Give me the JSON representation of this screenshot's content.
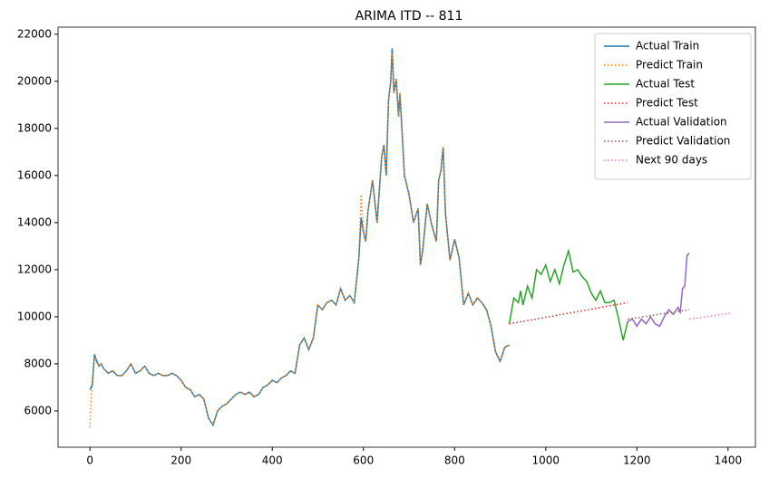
{
  "chart_data": {
    "type": "line",
    "title": "ARIMA ITD -- 811",
    "xlim": [
      -70,
      1460
    ],
    "ylim": [
      4460,
      22300
    ],
    "xticks": [
      0,
      200,
      400,
      600,
      800,
      1000,
      1200,
      1400
    ],
    "yticks": [
      6000,
      8000,
      10000,
      12000,
      14000,
      16000,
      18000,
      20000,
      22000
    ],
    "legend": "upper right",
    "series": [
      {
        "name": "Actual Train",
        "color": "#1f77b4",
        "style": "solid",
        "x": [
          0,
          5,
          10,
          15,
          20,
          25,
          30,
          40,
          50,
          60,
          70,
          80,
          90,
          100,
          110,
          120,
          130,
          140,
          150,
          160,
          170,
          180,
          190,
          200,
          210,
          220,
          230,
          240,
          250,
          260,
          270,
          280,
          290,
          300,
          310,
          320,
          330,
          340,
          350,
          360,
          370,
          380,
          390,
          400,
          410,
          420,
          430,
          440,
          450,
          460,
          470,
          480,
          490,
          500,
          510,
          520,
          530,
          540,
          550,
          560,
          570,
          580,
          590,
          595,
          600,
          605,
          610,
          620,
          630,
          640,
          645,
          650,
          655,
          660,
          663,
          667,
          672,
          677,
          680,
          690,
          700,
          710,
          720,
          725,
          730,
          740,
          750,
          760,
          765,
          770,
          775,
          780,
          790,
          800,
          810,
          820,
          830,
          840,
          850,
          860,
          870,
          880,
          890,
          900,
          910,
          920
        ],
        "values": [
          6900,
          7100,
          8400,
          8100,
          7900,
          8000,
          7800,
          7600,
          7700,
          7500,
          7500,
          7700,
          8000,
          7600,
          7700,
          7900,
          7600,
          7500,
          7600,
          7500,
          7500,
          7600,
          7500,
          7300,
          7000,
          6900,
          6600,
          6700,
          6500,
          5700,
          5400,
          6000,
          6200,
          6300,
          6500,
          6700,
          6800,
          6700,
          6800,
          6600,
          6700,
          7000,
          7100,
          7300,
          7200,
          7400,
          7500,
          7700,
          7600,
          8800,
          9100,
          8600,
          9100,
          10500,
          10300,
          10600,
          10700,
          10500,
          11200,
          10700,
          10900,
          10600,
          12500,
          14200,
          13600,
          13200,
          14500,
          15800,
          14000,
          16800,
          17300,
          16000,
          19200,
          20000,
          21400,
          19500,
          20100,
          18500,
          19500,
          16000,
          15200,
          14000,
          14600,
          12200,
          12800,
          14800,
          13900,
          13200,
          15800,
          16200,
          17200,
          14400,
          12400,
          13300,
          12500,
          10500,
          11000,
          10500,
          10800,
          10600,
          10300,
          9600,
          8500,
          8100,
          8700,
          8800
        ]
      },
      {
        "name": "Predict Train",
        "color": "#ff7f0e",
        "style": "dotted",
        "x": [
          0,
          3,
          5,
          10,
          15,
          20,
          25,
          30,
          40,
          50,
          60,
          70,
          80,
          90,
          100,
          110,
          120,
          130,
          140,
          150,
          160,
          170,
          180,
          190,
          200,
          210,
          220,
          230,
          240,
          250,
          260,
          270,
          280,
          290,
          300,
          310,
          320,
          330,
          340,
          350,
          360,
          370,
          380,
          390,
          400,
          410,
          420,
          430,
          440,
          450,
          460,
          470,
          480,
          490,
          500,
          510,
          520,
          530,
          540,
          550,
          560,
          570,
          580,
          590,
          595,
          600,
          605,
          610,
          620,
          630,
          640,
          645,
          650,
          655,
          660,
          663,
          667,
          672,
          677,
          680,
          690,
          700,
          710,
          720,
          725,
          730,
          740,
          750,
          760,
          765,
          770,
          775,
          780,
          790,
          800,
          810,
          820,
          830,
          840,
          850,
          860,
          870,
          880,
          890,
          900,
          910,
          920
        ],
        "values": [
          5300,
          6700,
          7000,
          8300,
          8200,
          7900,
          8000,
          7800,
          7600,
          7700,
          7500,
          7500,
          7700,
          8000,
          7600,
          7700,
          7900,
          7600,
          7500,
          7600,
          7500,
          7500,
          7600,
          7500,
          7300,
          7000,
          6900,
          6600,
          6700,
          6500,
          5700,
          5400,
          6000,
          6200,
          6300,
          6500,
          6700,
          6800,
          6700,
          6800,
          6600,
          6700,
          7000,
          7100,
          7300,
          7200,
          7400,
          7500,
          7700,
          7600,
          8800,
          9100,
          8600,
          9100,
          10500,
          10300,
          10600,
          10700,
          10500,
          11200,
          10700,
          10900,
          10600,
          12500,
          15200,
          13600,
          13200,
          14500,
          15800,
          14000,
          16800,
          17300,
          16000,
          19200,
          20000,
          21200,
          19500,
          20100,
          18500,
          19500,
          16000,
          15200,
          14000,
          14600,
          12200,
          12800,
          14800,
          13900,
          13200,
          15800,
          16200,
          17200,
          14400,
          12400,
          13300,
          12500,
          10500,
          11000,
          10500,
          10800,
          10600,
          10300,
          9600,
          8500,
          8100,
          8700,
          8800
        ]
      },
      {
        "name": "Actual Test",
        "color": "#2ca02c",
        "style": "solid",
        "x": [
          920,
          930,
          940,
          945,
          950,
          960,
          970,
          980,
          990,
          1000,
          1010,
          1020,
          1030,
          1040,
          1050,
          1060,
          1070,
          1080,
          1090,
          1100,
          1110,
          1120,
          1130,
          1140,
          1150,
          1160,
          1170,
          1180
        ],
        "values": [
          9700,
          10800,
          10600,
          11100,
          10500,
          11300,
          10800,
          12000,
          11800,
          12200,
          11500,
          12000,
          11400,
          12200,
          12800,
          11900,
          12000,
          11700,
          11500,
          11000,
          10700,
          11100,
          10600,
          10600,
          10700,
          9900,
          9000,
          9800
        ]
      },
      {
        "name": "Predict Test",
        "color": "#d62728",
        "style": "dotted",
        "x": [
          920,
          1050,
          1180
        ],
        "values": [
          9700,
          10150,
          10600
        ]
      },
      {
        "name": "Actual Validation",
        "color": "#9467bd",
        "style": "solid",
        "x": [
          1180,
          1190,
          1200,
          1210,
          1220,
          1230,
          1240,
          1250,
          1260,
          1270,
          1280,
          1290,
          1295,
          1300,
          1305,
          1310,
          1315
        ],
        "values": [
          9800,
          9900,
          9600,
          9900,
          9700,
          10000,
          9700,
          9600,
          10000,
          10300,
          10100,
          10400,
          10200,
          11200,
          11300,
          12600,
          12700
        ]
      },
      {
        "name": "Predict Validation",
        "color": "#8c564b",
        "style": "dotted",
        "x": [
          1180,
          1315
        ],
        "values": [
          9900,
          10300
        ]
      },
      {
        "name": "Next 90 days",
        "color": "#e377c2",
        "style": "dotted",
        "x": [
          1315,
          1404
        ],
        "values": [
          9900,
          10150
        ]
      }
    ]
  }
}
